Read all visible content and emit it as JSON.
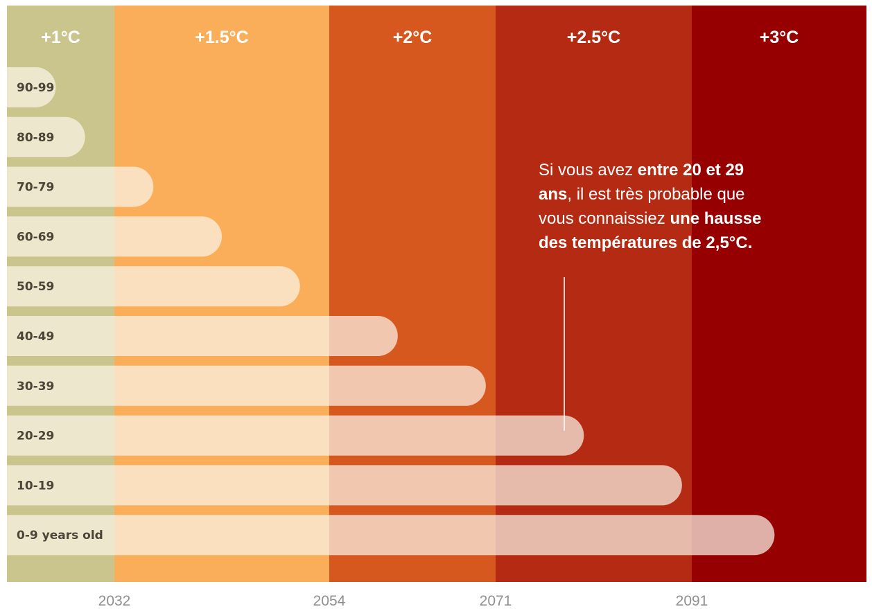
{
  "chart_data": {
    "type": "bar",
    "orientation": "horizontal",
    "x_axis": {
      "ticks": [
        "2032",
        "2054",
        "2071",
        "2091"
      ],
      "range": [
        2021,
        2110
      ]
    },
    "zones": [
      {
        "label": "+1°C",
        "start": 2021,
        "end": 2032,
        "color": "#c9c58d"
      },
      {
        "label": "+1.5°C",
        "start": 2032,
        "end": 2054,
        "color": "#fbae59"
      },
      {
        "label": "+2°C",
        "start": 2054,
        "end": 2071,
        "color": "#d6581f"
      },
      {
        "label": "+2.5°C",
        "start": 2071,
        "end": 2091,
        "color": "#b52a13"
      },
      {
        "label": "+3°C",
        "start": 2091,
        "end": 2110,
        "color": "#960000"
      }
    ],
    "categories": [
      "90-99",
      "80-89",
      "70-79",
      "60-69",
      "50-59",
      "40-49",
      "30-39",
      "20-29",
      "10-19",
      "0-9 years old"
    ],
    "values": [
      2026,
      2029,
      2036,
      2043,
      2051,
      2061,
      2070,
      2080,
      2090,
      2100
    ],
    "annotation": {
      "part1": "Si vous avez ",
      "bold1": "entre 20 et 29 ans",
      "part2": ", il est très probable que vous connaissiez ",
      "bold2": "une hausse des températures de 2,5°C.",
      "target_category": "20-29",
      "target_value": 2078
    }
  }
}
